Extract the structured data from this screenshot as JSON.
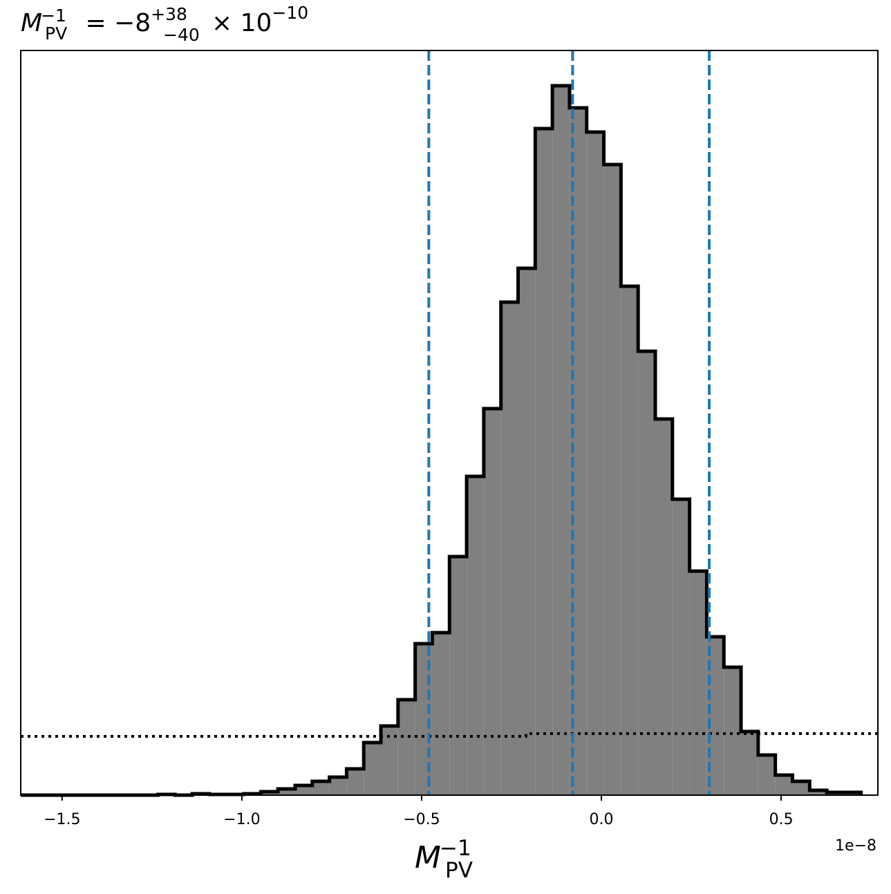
{
  "chart_data": {
    "type": "histogram",
    "title": {
      "symbol": "M",
      "sub": "PV",
      "sup": "−1",
      "eq": " = −8",
      "upper": "+38",
      "lower": "−40",
      "times": "× 10",
      "exp": "−10"
    },
    "xlabel": {
      "symbol": "M",
      "sub": "PV",
      "sup": "−1"
    },
    "offset_text": "1e−8",
    "bins": [
      -1.615,
      -1.5673,
      -1.5196,
      -1.4719,
      -1.4242,
      -1.3765,
      -1.3288,
      -1.2811,
      -1.2334,
      -1.1857,
      -1.138,
      -1.0903,
      -1.0426,
      -0.9949,
      -0.9472,
      -0.8995,
      -0.8518,
      -0.8041,
      -0.7564,
      -0.7087,
      -0.661,
      -0.6133,
      -0.5656,
      -0.5179,
      -0.4702,
      -0.4225,
      -0.3748,
      -0.3271,
      -0.2794,
      -0.2317,
      -0.184,
      -0.1363,
      -0.0886,
      -0.0409,
      0.0068,
      0.0545,
      0.1022,
      0.1499,
      0.1976,
      0.2453,
      0.293,
      0.3407,
      0.3884,
      0.4361,
      0.4838,
      0.5315,
      0.5792,
      0.6269,
      0.6746,
      0.7223
    ],
    "counts": [
      0,
      0,
      0,
      0,
      0,
      0,
      0,
      0,
      1,
      0,
      2,
      1,
      1,
      2,
      5,
      9,
      14,
      20,
      26,
      38,
      76,
      100,
      138,
      219,
      235,
      345,
      461,
      559,
      713,
      762,
      964,
      1026,
      994,
      959,
      912,
      736,
      642,
      544,
      428,
      324,
      229,
      185,
      92,
      58,
      29,
      20,
      7,
      4,
      4
    ],
    "color": "#808080",
    "edgecolor": "#000000",
    "quantiles": [
      -0.48,
      -0.08,
      0.3
    ],
    "quantile_color": "#1f77b4",
    "dotted_line": {
      "x": [
        -1.615,
        -0.21,
        -0.21,
        0.769
      ],
      "values": [
        85,
        85,
        89,
        89
      ],
      "color": "#000000"
    },
    "xlim": [
      -1.615,
      0.769
    ],
    "ylim": [
      0,
      1077
    ],
    "xticks": [
      {
        "value": -1.5,
        "label": "−1.5"
      },
      {
        "value": -1.0,
        "label": "−1.0"
      },
      {
        "value": -0.5,
        "label": "−0.5"
      },
      {
        "value": 0,
        "label": "0.0"
      },
      {
        "value": 0.5,
        "label": "0.5"
      }
    ]
  }
}
